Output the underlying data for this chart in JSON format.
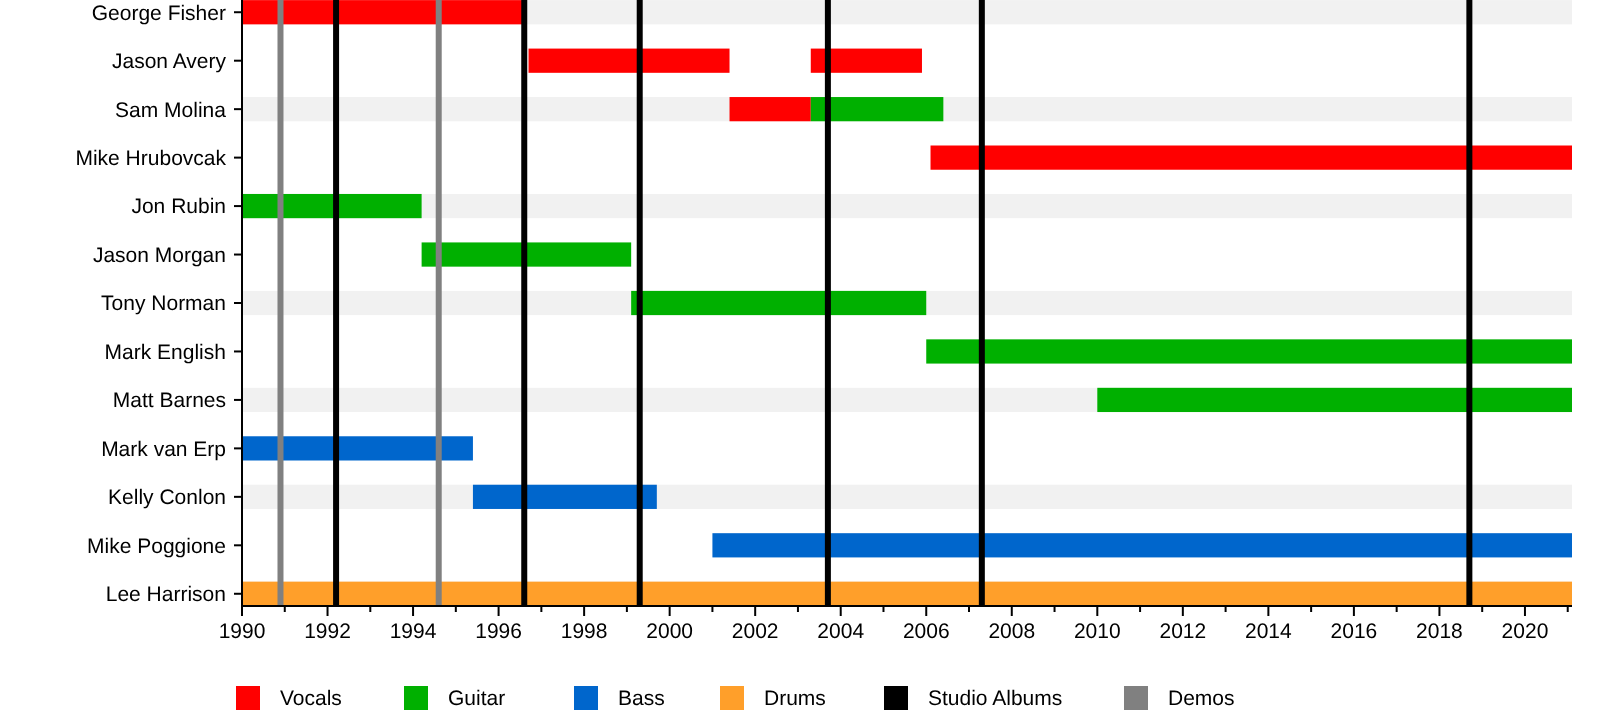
{
  "chart_data": {
    "type": "bar",
    "orientation": "horizontal",
    "categories": [
      "George Fisher",
      "Jason Avery",
      "Sam Molina",
      "Mike Hrubovcak",
      "Jon Rubin",
      "Jason Morgan",
      "Tony Norman",
      "Mark English",
      "Matt Barnes",
      "Mark van Erp",
      "Kelly Conlon",
      "Mike Poggione",
      "Lee Harrison"
    ],
    "series": [
      {
        "name": "Vocals",
        "color": "#ff0000",
        "base": [
          1990,
          1996.7,
          2001.4,
          2006.1,
          null,
          null,
          null,
          null,
          null,
          null,
          null,
          null,
          null
        ],
        "values": [
          6.6,
          4.7,
          1.9,
          15,
          null,
          null,
          null,
          null,
          null,
          null,
          null,
          null,
          null
        ]
      },
      {
        "color": "#ff0000",
        "base": [
          null,
          2003.3,
          null,
          null,
          null,
          null,
          null,
          null,
          null,
          null,
          null,
          null,
          null
        ],
        "values": [
          null,
          2.6,
          null,
          null,
          null,
          null,
          null,
          null,
          null,
          null,
          null,
          null,
          null
        ]
      },
      {
        "name": "Guitar",
        "color": "#00b000",
        "base": [
          null,
          null,
          2003.3,
          null,
          1990,
          1994.2,
          1999.1,
          2006,
          2010,
          null,
          null,
          null,
          null
        ],
        "values": [
          null,
          null,
          3.1,
          null,
          4.2,
          4.9,
          6.9,
          15.1,
          11.1,
          null,
          null,
          null,
          null
        ]
      },
      {
        "name": "Bass",
        "color": "#0066cc",
        "base": [
          null,
          null,
          null,
          null,
          null,
          null,
          null,
          null,
          null,
          1990,
          1995.4,
          2001,
          null
        ],
        "values": [
          null,
          null,
          null,
          null,
          null,
          null,
          null,
          null,
          null,
          5.4,
          4.3,
          20.1,
          null
        ]
      },
      {
        "name": "Drums",
        "color": "#ff9f2a",
        "base": [
          null,
          null,
          null,
          null,
          null,
          null,
          null,
          null,
          null,
          null,
          null,
          null,
          1990
        ],
        "values": [
          null,
          null,
          null,
          null,
          null,
          null,
          null,
          null,
          null,
          null,
          null,
          null,
          31.1
        ]
      }
    ],
    "xlim": [
      1990,
      2021.1
    ],
    "xticks": [
      1990,
      {
        "value": 1991,
        "label": null
      },
      1992,
      {
        "value": 1993,
        "label": null
      },
      1994,
      {
        "value": 1995,
        "label": null
      },
      1996,
      {
        "value": 1997,
        "label": null
      },
      1998,
      {
        "value": 1999,
        "label": null
      },
      2000,
      {
        "value": 2001,
        "label": null
      },
      2002,
      {
        "value": 2003,
        "label": null
      },
      2004,
      {
        "value": 2005,
        "label": null
      },
      2006,
      {
        "value": 2007,
        "label": null
      },
      2008,
      {
        "value": 2009,
        "label": null
      },
      2010,
      {
        "value": 2011,
        "label": null
      },
      2012,
      {
        "value": 2013,
        "label": null
      },
      2014,
      {
        "value": 2015,
        "label": null
      },
      2016,
      {
        "value": 2017,
        "label": null
      },
      2018,
      {
        "value": 2019,
        "label": null
      },
      2020,
      {
        "value": 2021,
        "label": null
      }
    ],
    "ref_lines": [
      {
        "axis": "x",
        "value": 1992.2,
        "label": "Studio Albums",
        "color": "#000000"
      },
      {
        "axis": "x",
        "value": 1996.6,
        "color": "#000000"
      },
      {
        "axis": "x",
        "value": 1999.3,
        "color": "#000000"
      },
      {
        "axis": "x",
        "value": 2003.7,
        "color": "#000000"
      },
      {
        "axis": "x",
        "value": 2007.3,
        "color": "#000000"
      },
      {
        "axis": "x",
        "value": 2018.7,
        "color": "#000000"
      },
      {
        "axis": "x",
        "value": 1990.9,
        "label": "Demos",
        "color": "#808080"
      },
      {
        "axis": "x",
        "value": 1994.6,
        "color": "#808080"
      }
    ],
    "legend": "bottom",
    "grid": false
  }
}
